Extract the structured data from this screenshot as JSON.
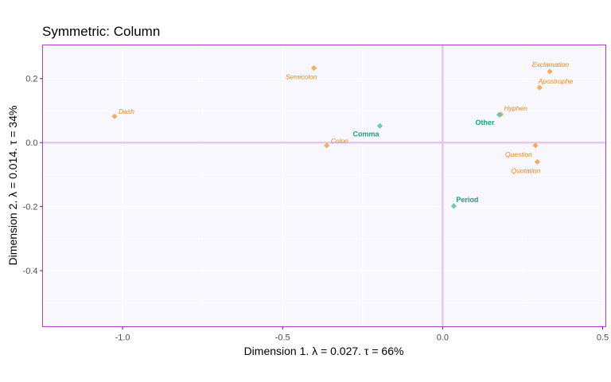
{
  "chart_data": {
    "type": "scatter",
    "title": "Symmetric: Column",
    "xlabel": "Dimension 1.   λ = 0.027.  τ = 66%",
    "ylabel": "Dimension 2.  λ = 0.014.  τ = 34%",
    "xlim": [
      -1.25,
      0.51
    ],
    "ylim": [
      -0.575,
      0.305
    ],
    "x_ticks": [
      -1.0,
      -0.5,
      0.0,
      0.5
    ],
    "x_tick_labels": [
      "-1.0",
      "-0.5",
      "0.0",
      "0.5"
    ],
    "y_ticks": [
      -0.4,
      -0.2,
      0.0,
      0.2
    ],
    "y_tick_labels": [
      "-0.4",
      "-0.2",
      "0.0",
      "0.2"
    ],
    "grid": true,
    "legend": "none",
    "colors": {
      "column_points": "#F5A34F",
      "column_labels": "#F0871A",
      "row_points": "#5FC3A8",
      "row_labels": "#1A9E80",
      "panel_background": "#F8F7FD",
      "panel_border": "#B040C8",
      "zero_lines": "#E4C8EE"
    },
    "series": [
      {
        "group": "columns",
        "points": [
          {
            "label": "Exclamation",
            "x": 0.335,
            "y": 0.222
          },
          {
            "label": "Semicolon",
            "x": -0.402,
            "y": 0.233
          },
          {
            "label": "Apostrophe",
            "x": 0.303,
            "y": 0.172
          },
          {
            "label": "Dash",
            "x": -1.025,
            "y": 0.082
          },
          {
            "label": "Hyphen",
            "x": 0.182,
            "y": 0.088
          },
          {
            "label": "Colon",
            "x": -0.362,
            "y": -0.009
          },
          {
            "label": "Question",
            "x": 0.29,
            "y": -0.009
          },
          {
            "label": "Quotation",
            "x": 0.296,
            "y": -0.06
          }
        ]
      },
      {
        "group": "rows",
        "points": [
          {
            "label": "Comma",
            "x": -0.196,
            "y": 0.052
          },
          {
            "label": "Other",
            "x": 0.177,
            "y": 0.087
          },
          {
            "label": "Period",
            "x": 0.035,
            "y": -0.198
          }
        ]
      }
    ]
  }
}
